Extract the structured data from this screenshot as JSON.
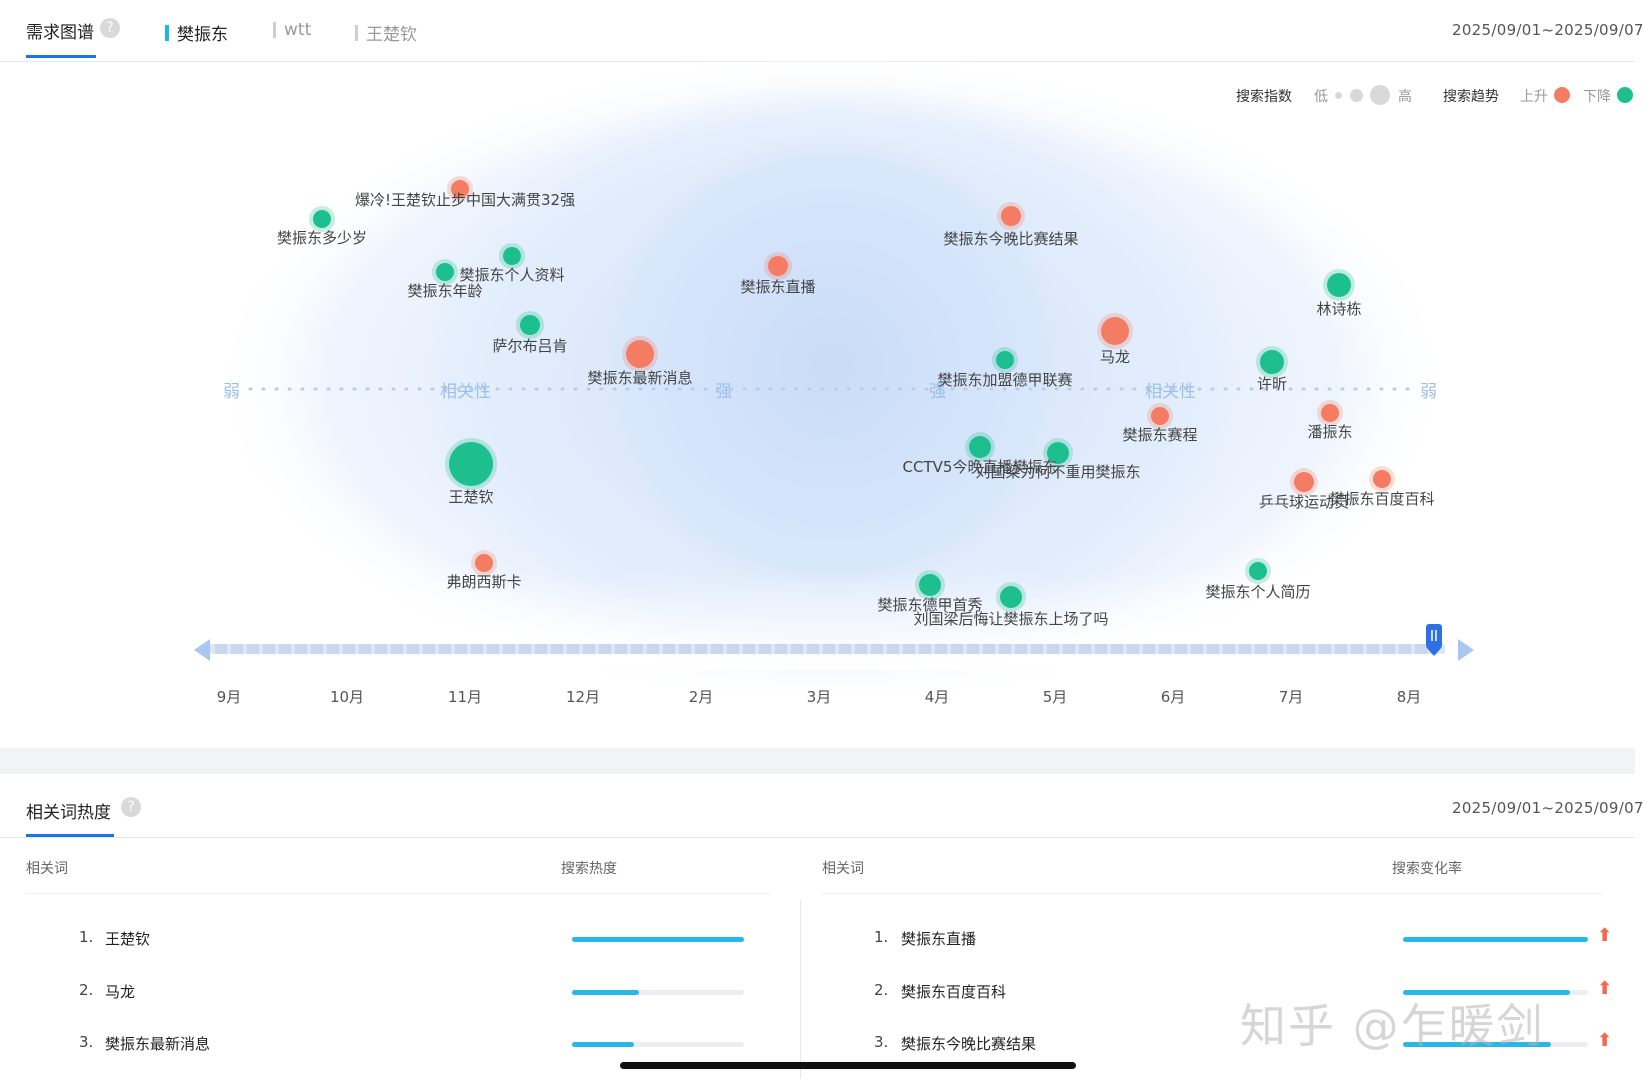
{
  "header": {
    "title": "需求图谱",
    "help": "?",
    "keywords": [
      {
        "label": "樊振东",
        "active": true,
        "color": "#1fb6e6"
      },
      {
        "label": "wtt",
        "active": false,
        "color": "#cfcfcf"
      },
      {
        "label": "王楚钦",
        "active": false,
        "color": "#cfcfcf"
      }
    ],
    "date_range": "2025/09/01~2025/09/07"
  },
  "legend": {
    "index_label": "搜索指数",
    "low": "低",
    "high": "高",
    "trend_label": "搜索趋势",
    "up": "上升",
    "down": "下降",
    "up_color": "#f47c63",
    "down_color": "#1dbf8e"
  },
  "chart_data": {
    "type": "bubble-graph",
    "axis_words": {
      "weak": "弱",
      "relevance": "相关性",
      "strong": "强"
    },
    "months": [
      "9月",
      "10月",
      "11月",
      "12月",
      "2月",
      "3月",
      "4月",
      "5月",
      "6月",
      "7月",
      "8月"
    ],
    "bubbles": [
      {
        "label": "爆冷!王楚钦止步中国大满贯32强",
        "trend": "up"
      },
      {
        "label": "樊振东多少岁",
        "trend": "down"
      },
      {
        "label": "樊振东个人资料",
        "trend": "down"
      },
      {
        "label": "樊振东年龄",
        "trend": "down"
      },
      {
        "label": "萨尔布吕肯",
        "trend": "down"
      },
      {
        "label": "樊振东最新消息",
        "trend": "up"
      },
      {
        "label": "樊振东直播",
        "trend": "up"
      },
      {
        "label": "樊振东今晚比赛结果",
        "trend": "up"
      },
      {
        "label": "林诗栋",
        "trend": "down"
      },
      {
        "label": "马龙",
        "trend": "up"
      },
      {
        "label": "樊振东加盟德甲联赛",
        "trend": "down"
      },
      {
        "label": "许昕",
        "trend": "down"
      },
      {
        "label": "潘振东",
        "trend": "up"
      },
      {
        "label": "樊振东赛程",
        "trend": "up"
      },
      {
        "label": "王楚钦",
        "trend": "down"
      },
      {
        "label": "CCTV5今晚直播樊振东",
        "trend": "down"
      },
      {
        "label": "刘国梁为何不重用樊振东",
        "trend": "down"
      },
      {
        "label": "乒乓球运动员",
        "trend": "up"
      },
      {
        "label": "樊振东百度百科",
        "trend": "up"
      },
      {
        "label": "弗朗西斯卡",
        "trend": "up"
      },
      {
        "label": "樊振东德甲首秀",
        "trend": "down"
      },
      {
        "label": "刘国梁后悔让樊振东上场了吗",
        "trend": "down"
      },
      {
        "label": "樊振东个人简历",
        "trend": "down"
      }
    ]
  },
  "hot": {
    "title": "相关词热度",
    "help": "?",
    "date_range": "2025/09/01~2025/09/07",
    "left": {
      "col_word": "相关词",
      "col_metric": "搜索热度",
      "rows": [
        {
          "rank": "1.",
          "word": "王楚钦",
          "level": 1.0
        },
        {
          "rank": "2.",
          "word": "马龙",
          "level": 0.39
        },
        {
          "rank": "3.",
          "word": "樊振东最新消息",
          "level": 0.36
        }
      ]
    },
    "right": {
      "col_word": "相关词",
      "col_metric": "搜索变化率",
      "rows": [
        {
          "rank": "1.",
          "word": "樊振东直播",
          "level": 1.0
        },
        {
          "rank": "2.",
          "word": "樊振东百度百科",
          "level": 0.9
        },
        {
          "rank": "3.",
          "word": "樊振东今晚比赛结果",
          "level": 0.8
        }
      ]
    }
  },
  "watermark": "知乎 @乍暖剑"
}
